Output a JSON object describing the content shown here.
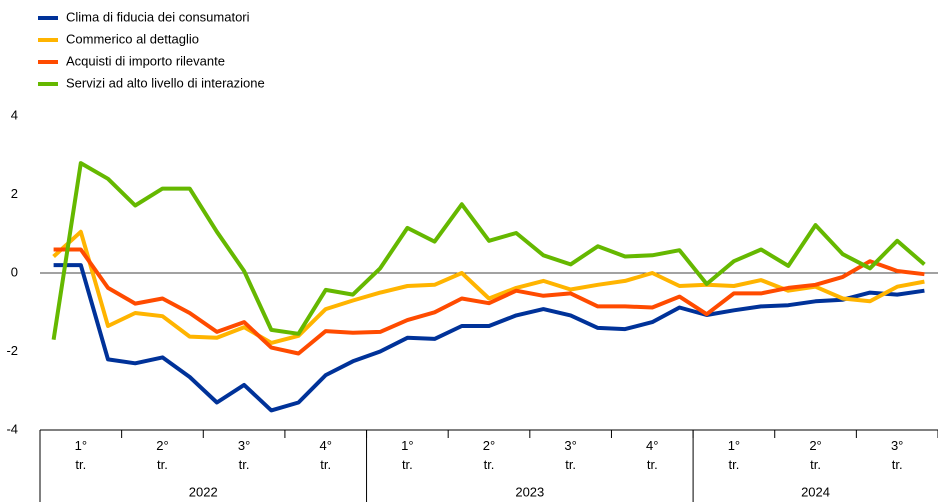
{
  "chart_data": {
    "type": "line",
    "categories": [
      null,
      null,
      null,
      null,
      null,
      null,
      null,
      null,
      null,
      null,
      null,
      null,
      null,
      null,
      null,
      null,
      null,
      null,
      null,
      null,
      null,
      null,
      null,
      null,
      null,
      null,
      null,
      null,
      null,
      null,
      null,
      null,
      null
    ],
    "quarters": [
      "1° tr.",
      "2° tr.",
      "3° tr.",
      "4° tr.",
      "1° tr.",
      "2° tr.",
      "3° tr.",
      "4° tr.",
      "1° tr.",
      "2° tr.",
      "3° tr."
    ],
    "years": [
      "2022",
      "2023",
      "2024"
    ],
    "ylim": [
      -4,
      4
    ],
    "yticks": [
      -4,
      -2,
      0,
      2,
      4
    ],
    "legend": "top-left",
    "series": [
      {
        "name": "Clima di fiducia dei consumatori",
        "color": "#003299",
        "values": [
          0.2,
          0.2,
          -2.2,
          -2.3,
          -2.15,
          -2.65,
          -3.3,
          -2.85,
          -3.5,
          -3.3,
          -2.6,
          -2.25,
          -2.0,
          -1.65,
          -1.68,
          -1.35,
          -1.35,
          -1.08,
          -0.92,
          -1.08,
          -1.4,
          -1.43,
          -1.25,
          -0.88,
          -1.07,
          -0.95,
          -0.85,
          -0.82,
          -0.72,
          -0.68,
          -0.5,
          -0.55,
          -0.45
        ]
      },
      {
        "name": "Commerico al dettaglio",
        "color": "#ffb400",
        "values": [
          0.42,
          1.05,
          -1.35,
          -1.02,
          -1.1,
          -1.62,
          -1.65,
          -1.38,
          -1.78,
          -1.6,
          -0.92,
          -0.7,
          -0.5,
          -0.33,
          -0.3,
          0.0,
          -0.65,
          -0.38,
          -0.2,
          -0.42,
          -0.3,
          -0.2,
          0.0,
          -0.33,
          -0.3,
          -0.33,
          -0.18,
          -0.45,
          -0.35,
          -0.65,
          -0.72,
          -0.35,
          -0.22
        ]
      },
      {
        "name": "Acquisti di importo rilevante",
        "color": "#ff4b00",
        "values": [
          0.6,
          0.6,
          -0.38,
          -0.78,
          -0.65,
          -1.02,
          -1.5,
          -1.25,
          -1.9,
          -2.05,
          -1.48,
          -1.52,
          -1.5,
          -1.2,
          -1.0,
          -0.65,
          -0.77,
          -0.45,
          -0.58,
          -0.52,
          -0.85,
          -0.85,
          -0.88,
          -0.6,
          -1.05,
          -0.52,
          -0.52,
          -0.38,
          -0.3,
          -0.1,
          0.3,
          0.05,
          -0.03
        ]
      },
      {
        "name": "Servizi ad alto livello di interazione",
        "color": "#65b800",
        "values": [
          -1.7,
          2.8,
          2.4,
          1.72,
          2.15,
          2.15,
          1.05,
          0.05,
          -1.45,
          -1.55,
          -0.43,
          -0.55,
          0.12,
          1.15,
          0.8,
          1.75,
          0.82,
          1.02,
          0.45,
          0.22,
          0.68,
          0.42,
          0.45,
          0.58,
          -0.28,
          0.3,
          0.6,
          0.18,
          1.22,
          0.48,
          0.12,
          0.82,
          0.22
        ]
      }
    ]
  }
}
